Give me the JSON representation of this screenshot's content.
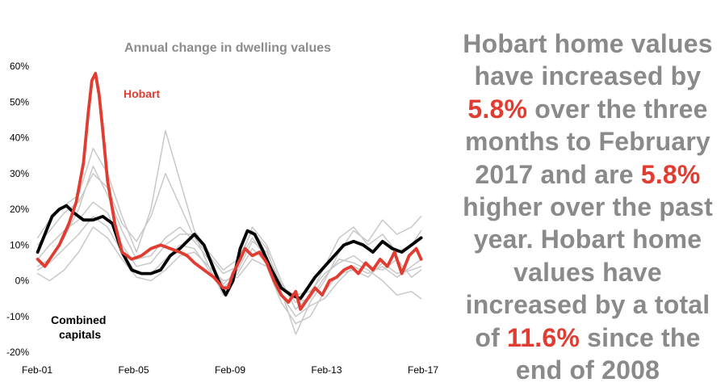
{
  "chart_data": {
    "type": "line",
    "title": "Annual change in dwelling values",
    "y_ticks": [
      "60%",
      "50%",
      "40%",
      "30%",
      "20%",
      "10%",
      "0%",
      "-10%",
      "-20%"
    ],
    "x_ticks": [
      "Feb-01",
      "Feb-05",
      "Feb-09",
      "Feb-13",
      "Feb-17"
    ],
    "ylim": [
      -20,
      60
    ],
    "xlim": [
      2001.08,
      2017.08
    ],
    "grid": false,
    "annotations": [
      {
        "text": "Hobart"
      },
      {
        "text": "Combined"
      },
      {
        "text": "capitals"
      }
    ],
    "series": [
      {
        "name": "Hobart",
        "color": "#e03c31",
        "x": [
          2001.1,
          2001.4,
          2001.7,
          2002.0,
          2002.4,
          2002.7,
          2003.0,
          2003.2,
          2003.35,
          2003.5,
          2003.65,
          2003.8,
          2004.0,
          2004.3,
          2004.6,
          2005.0,
          2005.4,
          2005.8,
          2006.2,
          2006.6,
          2007.0,
          2007.3,
          2007.6,
          2008.0,
          2008.4,
          2008.8,
          2009.0,
          2009.2,
          2009.5,
          2009.7,
          2010.0,
          2010.3,
          2010.6,
          2010.9,
          2011.2,
          2011.5,
          2011.8,
          2012.0,
          2012.3,
          2012.6,
          2012.9,
          2013.2,
          2013.5,
          2013.8,
          2014.1,
          2014.4,
          2014.7,
          2015.0,
          2015.3,
          2015.6,
          2015.9,
          2016.2,
          2016.5,
          2016.8,
          2017.0
        ],
        "values": [
          6,
          4,
          7,
          10,
          16,
          22,
          33,
          47,
          56,
          58,
          52,
          42,
          28,
          16,
          8,
          6,
          7,
          9,
          10,
          9,
          8,
          7,
          5,
          3,
          1,
          -2,
          -2,
          2,
          6,
          9,
          7,
          8,
          5,
          0,
          -4,
          -6,
          -3,
          -8,
          -5,
          -2,
          -4,
          0,
          1,
          3,
          4,
          2,
          5,
          3,
          6,
          4,
          8,
          2,
          7,
          9,
          6
        ]
      },
      {
        "name": "Combined capitals",
        "color": "#000000",
        "x": [
          2001.1,
          2001.4,
          2001.7,
          2002.0,
          2002.3,
          2002.6,
          2003.0,
          2003.4,
          2003.8,
          2004.2,
          2004.6,
          2005.0,
          2005.4,
          2005.8,
          2006.2,
          2006.6,
          2007.0,
          2007.3,
          2007.6,
          2008.0,
          2008.3,
          2008.6,
          2008.9,
          2009.2,
          2009.5,
          2009.8,
          2010.1,
          2010.4,
          2010.8,
          2011.2,
          2011.6,
          2012.0,
          2012.3,
          2012.6,
          2013.0,
          2013.4,
          2013.8,
          2014.2,
          2014.6,
          2015.0,
          2015.4,
          2015.8,
          2016.2,
          2016.6,
          2017.0
        ],
        "values": [
          8,
          13,
          18,
          20,
          21,
          19,
          17,
          17,
          18,
          16,
          8,
          3,
          2,
          2,
          3,
          7,
          9,
          11,
          13,
          10,
          5,
          0,
          -4,
          0,
          9,
          14,
          13,
          9,
          3,
          -2,
          -4,
          -5,
          -2,
          1,
          4,
          7,
          10,
          11,
          10,
          8,
          11,
          9,
          8,
          10,
          12
        ]
      },
      {
        "name": "",
        "color": "#c8c8c8",
        "x": [
          2001.1,
          2001.6,
          2002.2,
          2002.8,
          2003.4,
          2004.0,
          2004.6,
          2005.2,
          2005.8,
          2006.4,
          2007.0,
          2007.6,
          2008.2,
          2008.8,
          2009.4,
          2010.0,
          2010.6,
          2011.2,
          2011.8,
          2012.4,
          2013.0,
          2013.6,
          2014.2,
          2014.8,
          2015.4,
          2016.0,
          2016.6,
          2017.0
        ],
        "values": [
          10,
          14,
          19,
          22,
          30,
          26,
          16,
          11,
          18,
          30,
          21,
          12,
          7,
          2,
          4,
          15,
          10,
          0,
          -8,
          -4,
          4,
          12,
          15,
          10,
          13,
          8,
          10,
          14
        ]
      },
      {
        "name": "",
        "color": "#c8c8c8",
        "x": [
          2001.1,
          2001.6,
          2002.2,
          2002.8,
          2003.4,
          2004.0,
          2004.6,
          2005.2,
          2005.8,
          2006.4,
          2007.0,
          2007.6,
          2008.2,
          2008.8,
          2009.4,
          2010.0,
          2010.6,
          2011.2,
          2011.8,
          2012.4,
          2013.0,
          2013.6,
          2014.2,
          2014.8,
          2015.4,
          2016.0,
          2016.6,
          2017.0
        ],
        "values": [
          12,
          17,
          21,
          24,
          37,
          30,
          18,
          8,
          20,
          42,
          28,
          14,
          8,
          3,
          6,
          14,
          9,
          -3,
          -15,
          -6,
          0,
          8,
          14,
          11,
          17,
          13,
          15,
          18
        ]
      },
      {
        "name": "",
        "color": "#c8c8c8",
        "x": [
          2001.1,
          2001.6,
          2002.2,
          2002.8,
          2003.4,
          2004.0,
          2004.6,
          2005.2,
          2005.8,
          2006.4,
          2007.0,
          2007.6,
          2008.2,
          2008.8,
          2009.4,
          2010.0,
          2010.6,
          2011.2,
          2011.8,
          2012.4,
          2013.0,
          2013.6,
          2014.2,
          2014.8,
          2015.4,
          2016.0,
          2016.6,
          2017.0
        ],
        "values": [
          4,
          6,
          12,
          20,
          32,
          24,
          14,
          6,
          7,
          12,
          15,
          11,
          6,
          -1,
          3,
          11,
          8,
          -1,
          -6,
          -5,
          1,
          6,
          5,
          3,
          0,
          -4,
          -3,
          -5
        ]
      },
      {
        "name": "",
        "color": "#c8c8c8",
        "x": [
          2001.1,
          2001.6,
          2002.2,
          2002.8,
          2003.4,
          2004.0,
          2004.6,
          2005.2,
          2005.8,
          2006.4,
          2007.0,
          2007.6,
          2008.2,
          2008.8,
          2009.4,
          2010.0,
          2010.6,
          2011.2,
          2011.8,
          2012.4,
          2013.0,
          2013.6,
          2014.2,
          2014.8,
          2015.4,
          2016.0,
          2016.6,
          2017.0
        ],
        "values": [
          6,
          10,
          14,
          17,
          22,
          19,
          10,
          4,
          5,
          10,
          13,
          13,
          4,
          -4,
          5,
          12,
          6,
          -2,
          -4,
          -3,
          2,
          5,
          7,
          4,
          3,
          6,
          1,
          3
        ]
      },
      {
        "name": "",
        "color": "#c8c8c8",
        "x": [
          2001.1,
          2001.6,
          2002.2,
          2002.8,
          2003.4,
          2004.0,
          2004.6,
          2005.2,
          2005.8,
          2006.4,
          2007.0,
          2007.6,
          2008.2,
          2008.8,
          2009.4,
          2010.0,
          2010.6,
          2011.2,
          2011.8,
          2012.4,
          2013.0,
          2013.6,
          2014.2,
          2014.8,
          2015.4,
          2016.0,
          2016.6,
          2017.0
        ],
        "values": [
          3,
          5,
          9,
          13,
          18,
          15,
          8,
          2,
          2,
          6,
          10,
          9,
          3,
          -2,
          2,
          9,
          5,
          -4,
          -10,
          -7,
          -5,
          0,
          4,
          2,
          4,
          1,
          4,
          6
        ]
      },
      {
        "name": "",
        "color": "#c8c8c8",
        "x": [
          2001.1,
          2001.6,
          2002.2,
          2002.8,
          2003.4,
          2004.0,
          2004.6,
          2005.2,
          2005.8,
          2006.4,
          2007.0,
          2007.6,
          2008.2,
          2008.8,
          2009.4,
          2010.0,
          2010.6,
          2011.2,
          2011.8,
          2012.4,
          2013.0,
          2013.6,
          2014.2,
          2014.8,
          2015.4,
          2016.0,
          2016.6,
          2017.0
        ],
        "values": [
          2,
          0,
          3,
          8,
          15,
          12,
          6,
          1,
          0,
          3,
          7,
          8,
          4,
          0,
          1,
          6,
          4,
          -6,
          -12,
          -10,
          -3,
          2,
          3,
          1,
          5,
          2,
          3,
          4
        ]
      }
    ]
  },
  "side_text": {
    "p1": "Hobart home values have increased by",
    "v1": "5.8%",
    "p2": "over the three months to February 2017 and are",
    "v2": "5.8%",
    "p3": "higher over the past year.  Hobart home values have increased by a total of",
    "v3": "11.6%",
    "p4": "since the end of 2008"
  }
}
